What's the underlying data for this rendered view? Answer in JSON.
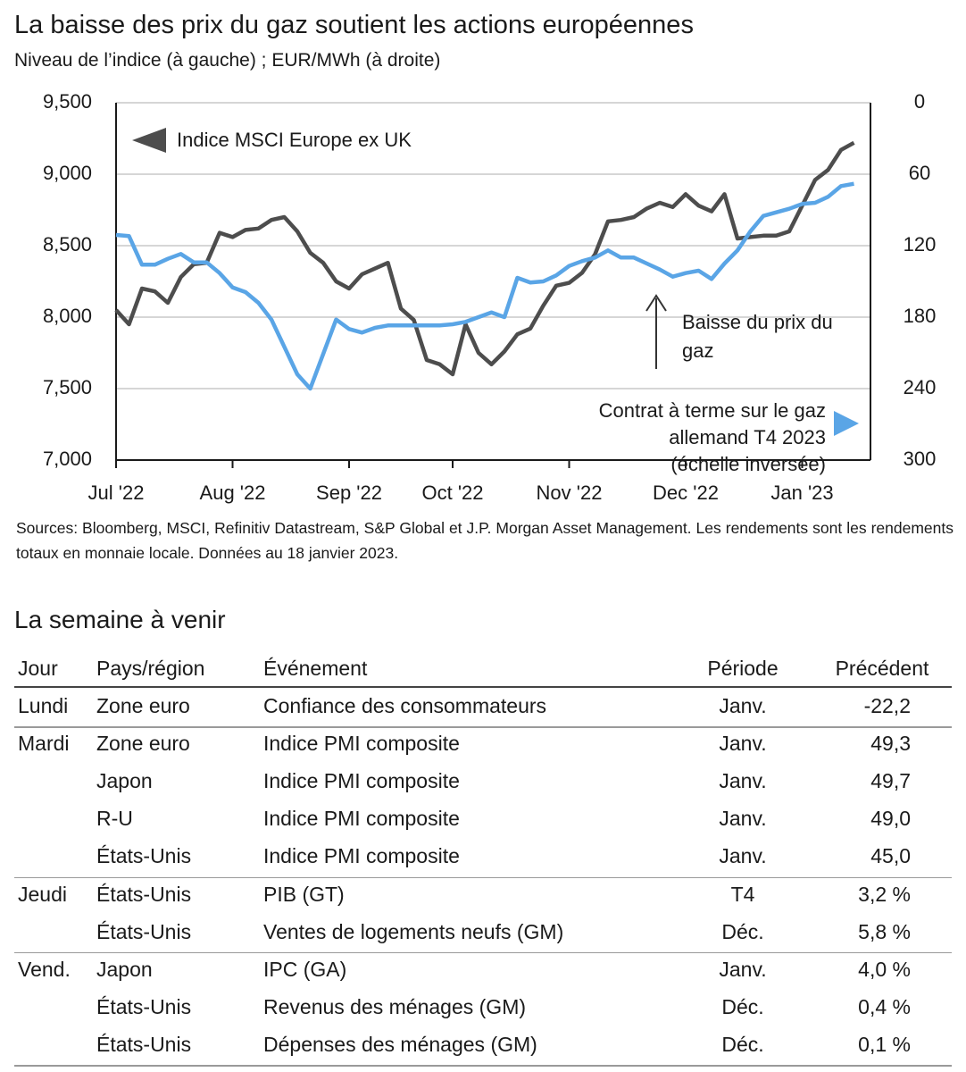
{
  "chart_data": {
    "type": "line",
    "title": "La baisse des prix du gaz soutient les actions européennes",
    "subtitle": "Niveau de l’indice (à gauche) ; EUR/MWh (à droite)",
    "source": "Sources: Bloomberg, MSCI, Refinitiv Datastream, S&P Global et J.P. Morgan Asset Management. Les rendements sont les rendements totaux en monnaie locale. Données au 18 janvier 2023.",
    "categories": [
      "Jul '22",
      null,
      null,
      null,
      null,
      null,
      null,
      null,
      null,
      "Aug '22",
      null,
      null,
      null,
      null,
      null,
      null,
      null,
      null,
      "Sep '22",
      null,
      null,
      null,
      null,
      null,
      null,
      null,
      "Oct '22",
      null,
      null,
      null,
      null,
      null,
      null,
      null,
      null,
      "Nov '22",
      null,
      null,
      null,
      null,
      null,
      null,
      null,
      null,
      "Dec '22",
      null,
      null,
      null,
      null,
      null,
      null,
      null,
      null,
      "Jan '23",
      null,
      null,
      null,
      null
    ],
    "series": [
      {
        "name": "Indice MSCI Europe ex UK",
        "color": "#4d4d4d",
        "values": [
          8050,
          7950,
          8200,
          8180,
          8100,
          8280,
          8370,
          8380,
          8590,
          8560,
          8610,
          8620,
          8680,
          8700,
          8600,
          8450,
          8380,
          8250,
          8200,
          8300,
          8340,
          8380,
          8060,
          7980,
          7700,
          7670,
          7600,
          7950,
          7750,
          7670,
          7760,
          7880,
          7920,
          8080,
          8220,
          8240,
          8310,
          8440,
          8670,
          8680,
          8700,
          8760,
          8800,
          8770,
          8860,
          8780,
          8740,
          8860,
          8550,
          8560,
          8570,
          8570,
          8600,
          8780,
          8960,
          9030,
          9170,
          9220
        ]
      },
      {
        "name": "Contrat à terme sur le gaz allemand T4 2023 (échelle inversée)",
        "color": "#5aa5e6",
        "axis": "y2",
        "values": [
          111,
          112,
          136,
          136,
          131,
          127,
          134,
          134,
          143,
          155,
          159,
          168,
          182,
          205,
          228,
          240,
          211,
          182,
          190,
          193,
          189,
          187,
          187,
          187,
          187,
          187,
          186,
          184,
          180,
          176,
          180,
          147,
          151,
          150,
          145,
          137,
          133,
          130,
          124,
          130,
          130,
          135,
          140,
          146,
          143,
          141,
          148,
          135,
          124,
          108,
          95,
          92,
          89,
          85,
          84,
          79,
          70,
          68
        ]
      }
    ],
    "ylim": [
      7000,
      9500
    ],
    "yticks": [
      {
        "value": 7000,
        "label": "7,000"
      },
      {
        "value": 7500,
        "label": "7,500"
      },
      {
        "value": 8000,
        "label": "8,000"
      },
      {
        "value": 8500,
        "label": "8,500"
      },
      {
        "value": 9000,
        "label": "9,000"
      },
      {
        "value": 9500,
        "label": "9,500"
      }
    ],
    "y2lim": [
      0,
      300
    ],
    "y2ticks": [
      0,
      60,
      120,
      180,
      240,
      300
    ],
    "y2_inverted": true,
    "grid": true,
    "annotation": "Baisse du prix du gaz"
  },
  "table": {
    "title": "La semaine à venir",
    "columns": [
      "Jour",
      "Pays/région",
      "Événement",
      "Période",
      "Précédent"
    ],
    "rows": [
      [
        "Lundi",
        "Zone euro",
        "Confiance des consommateurs",
        "Janv.",
        "-22,2"
      ],
      [
        "Mardi",
        "Zone euro",
        "Indice PMI composite",
        "Janv.",
        "49,3"
      ],
      [
        null,
        "Japon",
        "Indice PMI composite",
        "Janv.",
        "49,7"
      ],
      [
        null,
        "R-U",
        "Indice PMI composite",
        "Janv.",
        "49,0"
      ],
      [
        null,
        "États-Unis",
        "Indice PMI composite",
        "Janv.",
        "45,0"
      ],
      [
        "Jeudi",
        "États-Unis",
        "PIB (GT)",
        "T4",
        "3,2 %"
      ],
      [
        null,
        "États-Unis",
        "Ventes de logements neufs (GM)",
        "Déc.",
        "5,8 %"
      ],
      [
        "Vend.",
        "Japon",
        "IPC (GA)",
        "Janv.",
        "4,0 %"
      ],
      [
        null,
        "États-Unis",
        "Revenus des ménages (GM)",
        "Déc.",
        "0,4 %"
      ],
      [
        null,
        "États-Unis",
        "Dépenses des ménages (GM)",
        "Déc.",
        "0,1 %"
      ]
    ]
  }
}
